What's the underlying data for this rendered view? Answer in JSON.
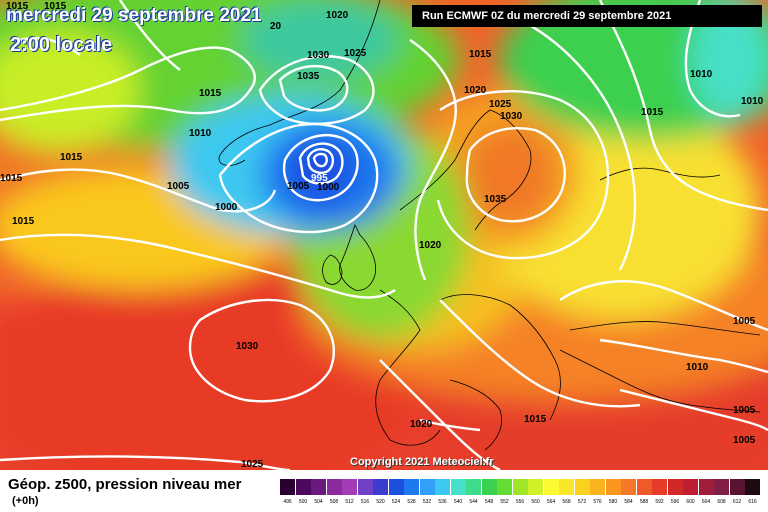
{
  "header": {
    "date": "mercredi 29 septembre 2021",
    "hour": "2:00 locale",
    "run": "Run ECMWF 0Z du mercredi 29 septembre 2021"
  },
  "copyright": "Copyright 2021 Meteociel.fr",
  "legend": {
    "title": "Géop. z500, pression niveau mer",
    "subtitle": "(+0h)",
    "scale": [
      {
        "v": "496",
        "c": "#2a0030"
      },
      {
        "v": "500",
        "c": "#4c0a5c"
      },
      {
        "v": "504",
        "c": "#6a1a7c"
      },
      {
        "v": "508",
        "c": "#8a2a9c"
      },
      {
        "v": "512",
        "c": "#a43cb8"
      },
      {
        "v": "516",
        "c": "#7040c8"
      },
      {
        "v": "520",
        "c": "#3c3cd0"
      },
      {
        "v": "524",
        "c": "#1e50e0"
      },
      {
        "v": "528",
        "c": "#1e78f0"
      },
      {
        "v": "532",
        "c": "#32a0f8"
      },
      {
        "v": "536",
        "c": "#3cc8f0"
      },
      {
        "v": "540",
        "c": "#46e0c8"
      },
      {
        "v": "544",
        "c": "#3cdc8c"
      },
      {
        "v": "548",
        "c": "#3cd050"
      },
      {
        "v": "552",
        "c": "#64dc32"
      },
      {
        "v": "556",
        "c": "#a0e628"
      },
      {
        "v": "560",
        "c": "#d2f028"
      },
      {
        "v": "564",
        "c": "#fafa32"
      },
      {
        "v": "568",
        "c": "#fae628"
      },
      {
        "v": "572",
        "c": "#fad21e"
      },
      {
        "v": "576",
        "c": "#fab41e"
      },
      {
        "v": "580",
        "c": "#fa961e"
      },
      {
        "v": "584",
        "c": "#f57828"
      },
      {
        "v": "588",
        "c": "#f05a28"
      },
      {
        "v": "592",
        "c": "#e63c28"
      },
      {
        "v": "596",
        "c": "#d22828"
      },
      {
        "v": "600",
        "c": "#be1e32"
      },
      {
        "v": "604",
        "c": "#a01e3c"
      },
      {
        "v": "608",
        "c": "#821e46"
      },
      {
        "v": "612",
        "c": "#5a1432"
      },
      {
        "v": "616",
        "c": "#1e0a10"
      }
    ]
  },
  "isobar_labels": {
    "l1015a": "1015",
    "l1015b": "1015",
    "l1020a": "1020",
    "l1030a": "1030",
    "l1025a": "1025",
    "l1035a": "1035",
    "l1015c": "1015",
    "l1010a": "1010",
    "l1015d": "1015",
    "l1005a": "1005",
    "l1015e": "1015",
    "l1000a": "1000",
    "l995": "995",
    "l1005b": "1005",
    "l1000b": "1000",
    "l1020b": "1020",
    "l1025b": "1025",
    "l1030b": "1030",
    "l1035b": "1035",
    "l1020c": "1020",
    "l1015f": "1015",
    "l1010b": "1010",
    "l1015g": "1015",
    "l1010c": "1010",
    "l1005c": "1005",
    "l1030c": "1030",
    "l1020d": "1020",
    "l1015h": "1015",
    "l1025c": "1025",
    "l1010d": "1010",
    "l1005d": "1005",
    "l1005e": "1005",
    "l1015i": "1015",
    "l20a": "20"
  }
}
